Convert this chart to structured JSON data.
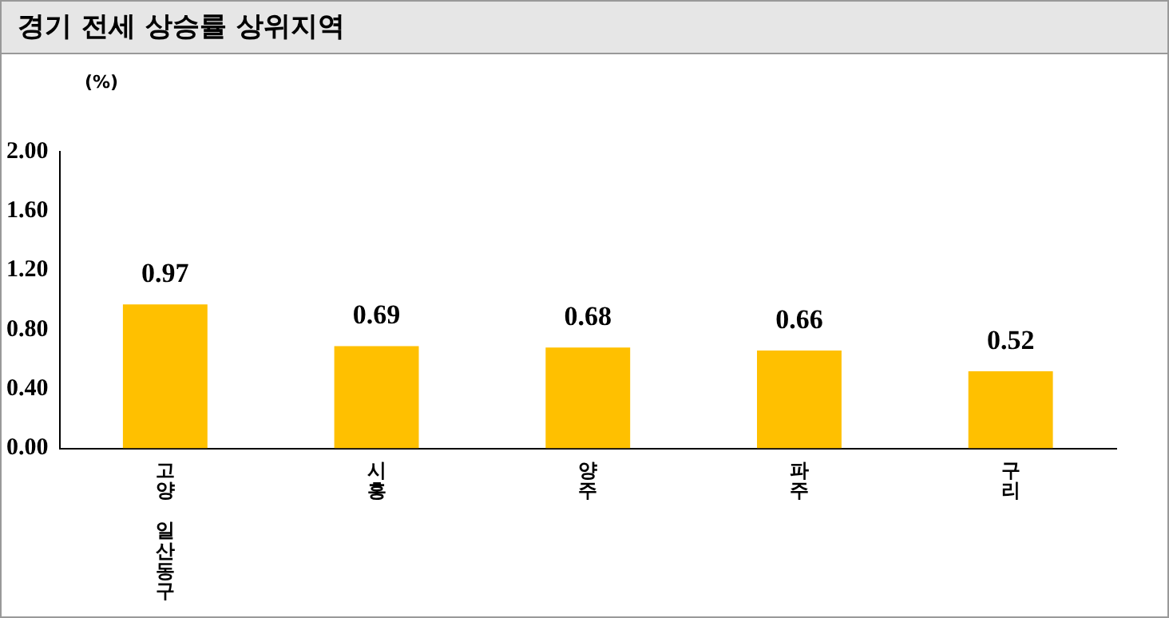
{
  "chart_data": {
    "type": "bar",
    "title": "경기 전세 상승률 상위지역",
    "ylabel": "(%)",
    "categories": [
      "고양 일산동구",
      "시흥",
      "양주",
      "파주",
      "구리"
    ],
    "values": [
      0.97,
      0.69,
      0.68,
      0.66,
      0.52
    ],
    "color": "#ffc000",
    "ylim": [
      0,
      2
    ],
    "yticks": [
      {
        "value": 0,
        "label": "0.00"
      },
      {
        "value": 0.4,
        "label": "0.40"
      },
      {
        "value": 0.8,
        "label": "0.80"
      },
      {
        "value": 1.2,
        "label": "1.20"
      },
      {
        "value": 1.6,
        "label": "1.60"
      },
      {
        "value": 2,
        "label": "2.00"
      }
    ],
    "grid": false,
    "legend": false,
    "data_labels": true
  }
}
